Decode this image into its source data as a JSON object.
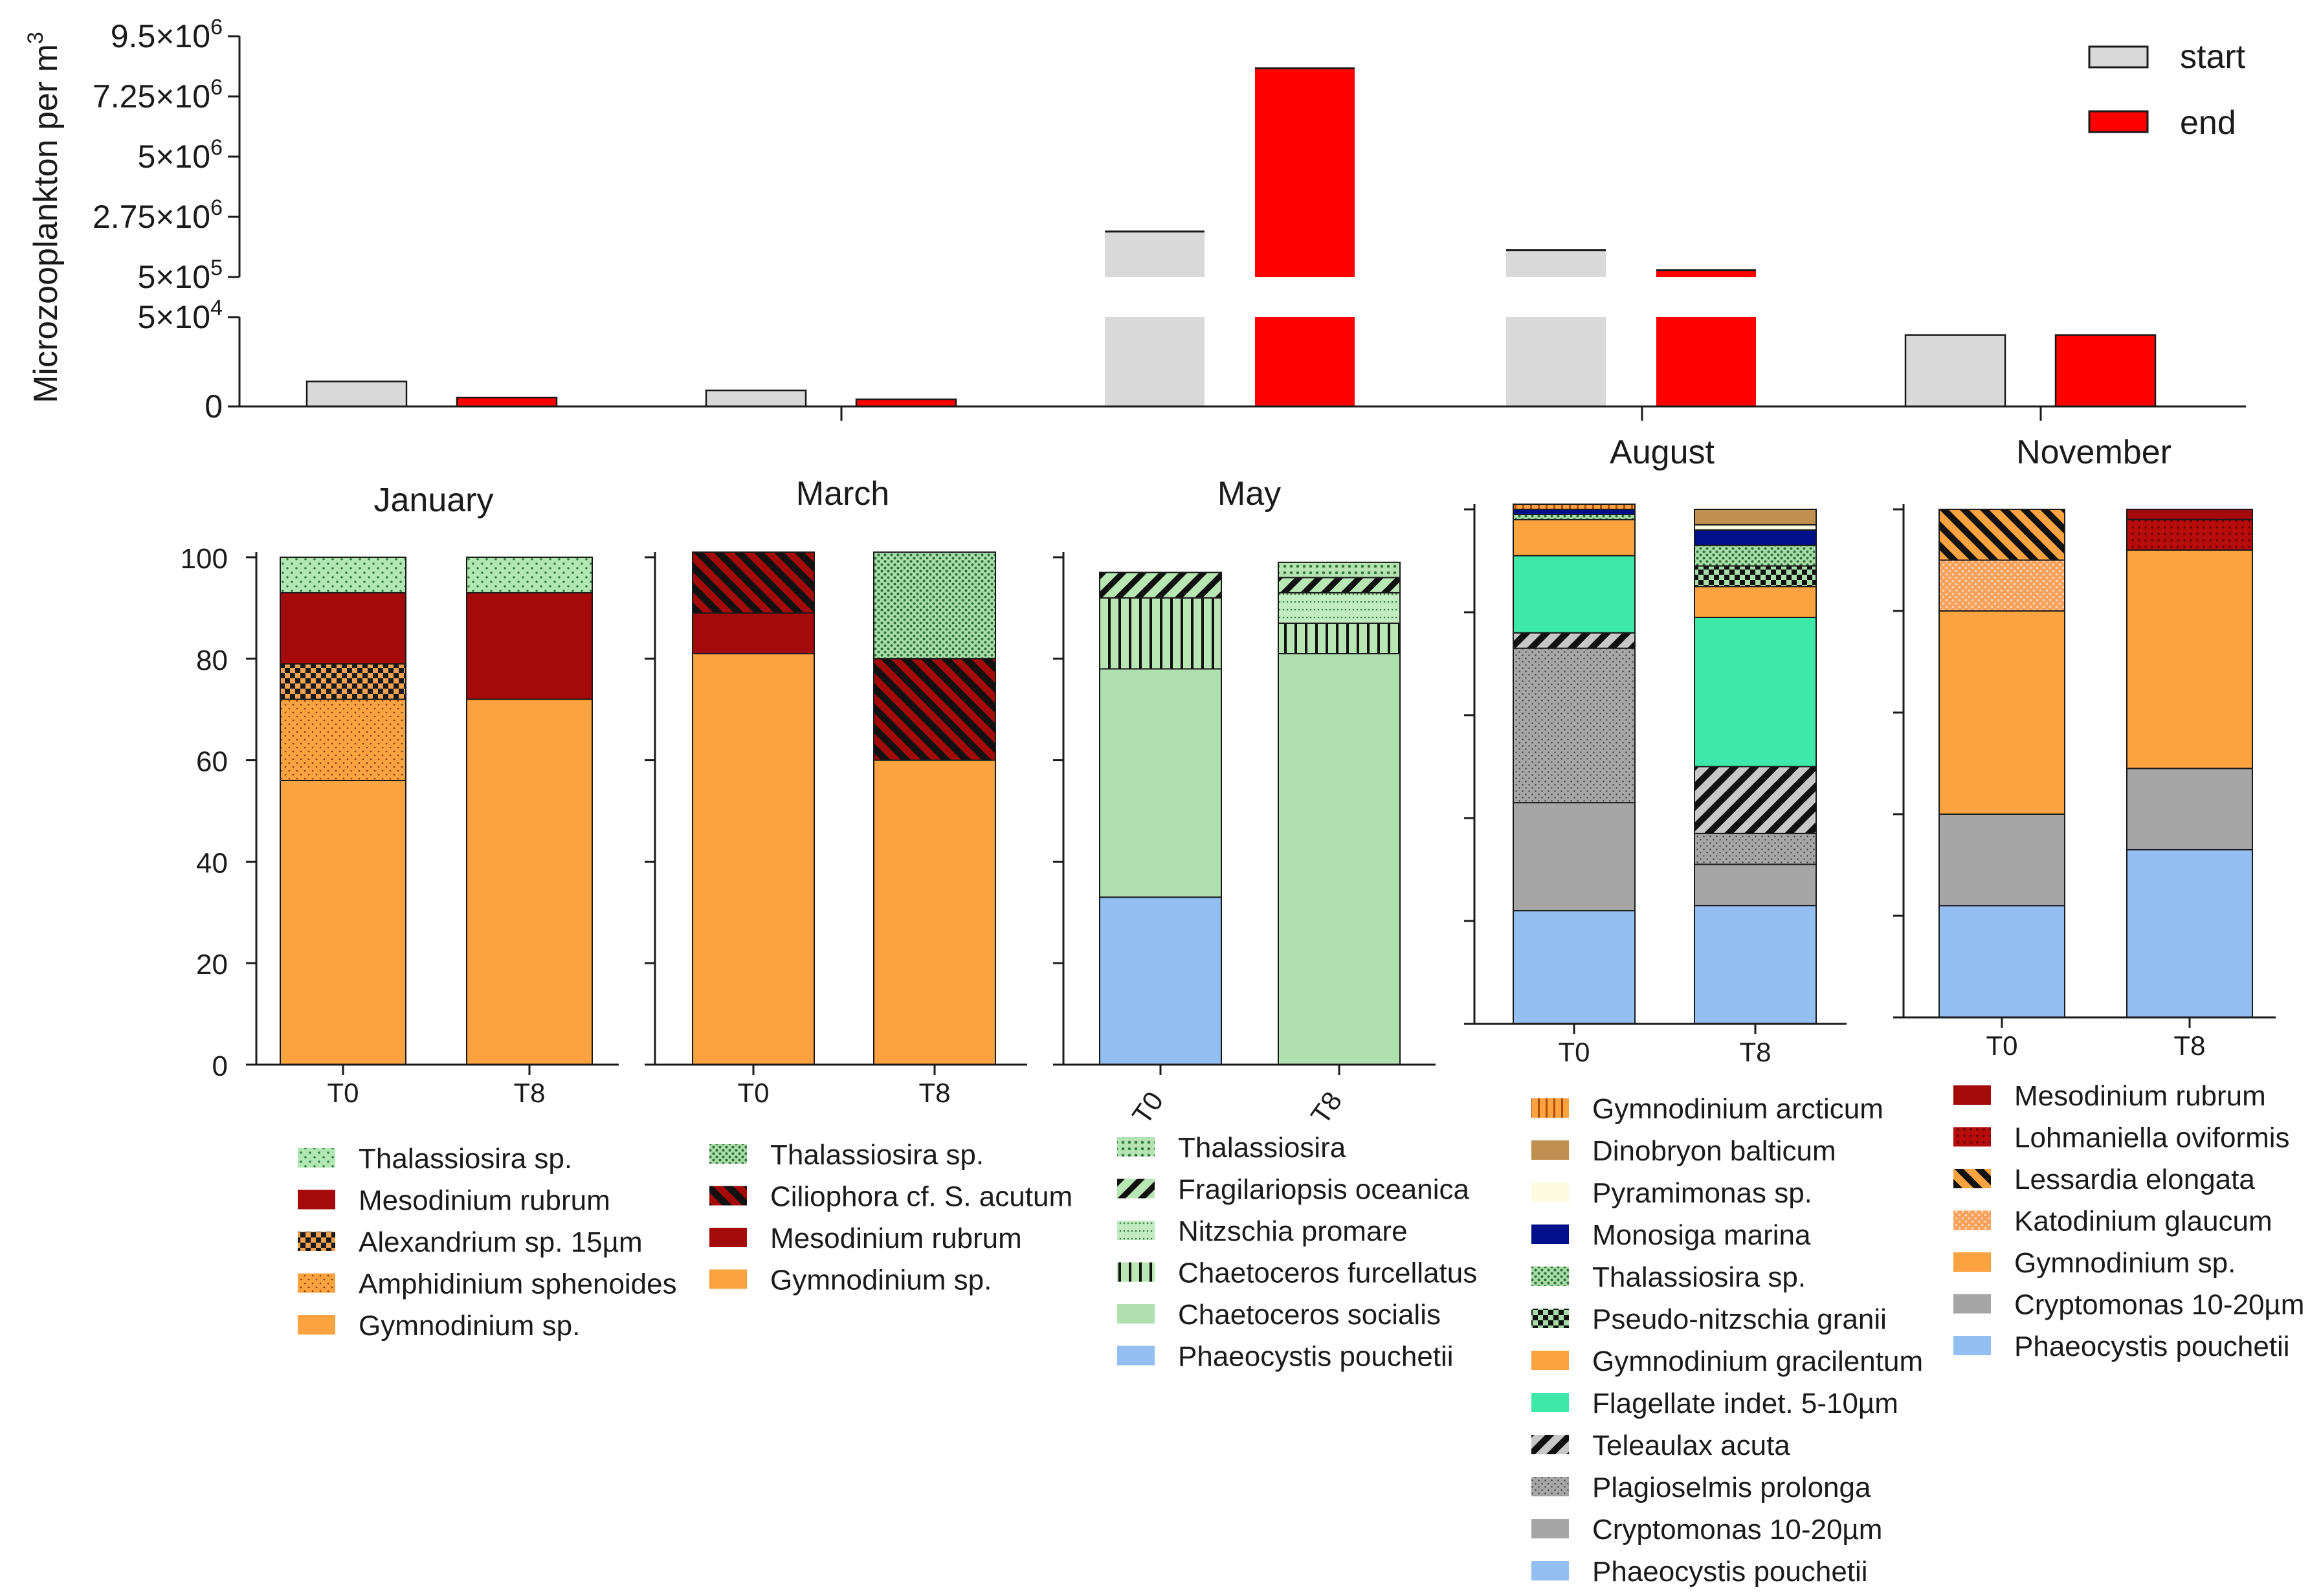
{
  "colors": {
    "start": "#d9d9d9",
    "end": "#ff0000",
    "mesodinium": "#a50a0a",
    "gymnodinium": "#fba341",
    "thalassio": "#b3e6b5",
    "chaet_soc": "#b0dfb0",
    "phaeocystis": "#94bff2",
    "crypto": "#a6a6a6",
    "plagio": "#a6a6a6",
    "flagellate": "#3ee8a9",
    "dino": "#c09050",
    "pyram": "#fffbe0",
    "monosiga": "#00108a",
    "katod": "#f6a15c",
    "white": "#ffffff"
  },
  "chart_data": [
    {
      "type": "bar",
      "title": "",
      "ylabel": "Microzooplankton per m³",
      "ylabel_main": "Microzooplankton per m",
      "ylabel_sup": "3",
      "axis_break": true,
      "lower_ylim": [
        0,
        50000
      ],
      "upper_ylim": [
        500000,
        9500000
      ],
      "lower_ticks": [
        {
          "value": 0,
          "label": "0"
        },
        {
          "value": 50000,
          "label": "5×10",
          "exp": "4"
        }
      ],
      "upper_ticks": [
        {
          "value": 500000,
          "label": "5×10",
          "exp": "5"
        },
        {
          "value": 2750000,
          "label": "2.75×10",
          "exp": "6"
        },
        {
          "value": 5000000,
          "label": "5×10",
          "exp": "6"
        },
        {
          "value": 7250000,
          "label": "7.25×10",
          "exp": "6"
        },
        {
          "value": 9500000,
          "label": "9.5×10",
          "exp": "6"
        }
      ],
      "categories": [
        "January",
        "March",
        "May",
        "August",
        "November"
      ],
      "series": [
        {
          "name": "start",
          "values": [
            14000,
            9000,
            2200000,
            1500000,
            40000
          ]
        },
        {
          "name": "end",
          "values": [
            5000,
            4000,
            8300000,
            750000,
            40000
          ]
        }
      ],
      "legend": [
        "start",
        "end"
      ],
      "legend_position": "top-right"
    },
    {
      "type": "bar",
      "stacked": true,
      "title": "January",
      "categories": [
        "T0",
        "T8"
      ],
      "y_ticks": [
        "0",
        "20",
        "40",
        "60",
        "80",
        "100"
      ],
      "ylim": [
        0,
        100
      ],
      "series": [
        {
          "name": "Gymnodinium sp.",
          "values": [
            56,
            72
          ],
          "pattern": "gymnodinium"
        },
        {
          "name": "Amphidinium sphenoides",
          "values": [
            16,
            0
          ],
          "pattern": "amphid"
        },
        {
          "name": "Alexandrium sp. 15µm",
          "values": [
            7,
            0
          ],
          "pattern": "alex"
        },
        {
          "name": "Mesodinium rubrum",
          "values": [
            14,
            21
          ],
          "pattern": "mesodinium"
        },
        {
          "name": "Thalassiosira sp.",
          "values": [
            7,
            7
          ],
          "pattern": "thalassio"
        }
      ],
      "legend": [
        "Thalassiosira sp.",
        "Mesodinium rubrum",
        "Alexandrium sp. 15µm",
        "Amphidinium sphenoides",
        "Gymnodinium sp."
      ]
    },
    {
      "type": "bar",
      "stacked": true,
      "title": "March",
      "categories": [
        "T0",
        "T8"
      ],
      "ylim": [
        0,
        100
      ],
      "series": [
        {
          "name": "Gymnodinium sp.",
          "values": [
            81,
            60
          ],
          "pattern": "gymnodinium"
        },
        {
          "name": "Mesodinium rubrum",
          "values": [
            8,
            0
          ],
          "pattern": "mesodinium"
        },
        {
          "name": "Ciliophora cf. S. acutum",
          "values": [
            12,
            20
          ],
          "pattern": "cilio"
        },
        {
          "name": "Thalassiosira sp.",
          "values": [
            0,
            21
          ],
          "pattern": "thal2"
        }
      ],
      "legend": [
        "Thalassiosira sp.",
        "Ciliophora cf. S. acutum",
        "Mesodinium rubrum",
        "Gymnodinium sp."
      ]
    },
    {
      "type": "bar",
      "stacked": true,
      "title": "May",
      "categories": [
        "T0",
        "T8"
      ],
      "ylim": [
        0,
        100
      ],
      "series": [
        {
          "name": "Phaeocystis pouchetii",
          "values": [
            33,
            0
          ],
          "pattern": "phaeocystis"
        },
        {
          "name": "Chaetoceros socialis",
          "values": [
            45,
            81
          ],
          "pattern": "chaet_soc"
        },
        {
          "name": "Chaetoceros furcellatus",
          "values": [
            14,
            6
          ],
          "pattern": "chaet_furc"
        },
        {
          "name": "Nitzschia promare",
          "values": [
            0,
            6
          ],
          "pattern": "nitz"
        },
        {
          "name": "Fragilariopsis oceanica",
          "values": [
            5,
            3
          ],
          "pattern": "fragil"
        },
        {
          "name": "Thalassiosira",
          "values": [
            0,
            3
          ],
          "pattern": "thal3"
        }
      ],
      "legend": [
        "Thalassiosira",
        "Fragilariopsis oceanica",
        "Nitzschia promare",
        "Chaetoceros furcellatus",
        "Chaetoceros socialis",
        "Phaeocystis pouchetii"
      ]
    },
    {
      "type": "bar",
      "stacked": true,
      "title": "August",
      "categories": [
        "T0",
        "T8"
      ],
      "ylim": [
        0,
        100
      ],
      "series": [
        {
          "name": "Phaeocystis pouchetii",
          "values": [
            22,
            23
          ],
          "pattern": "phaeocystis"
        },
        {
          "name": "Cryptomonas 10-20µm",
          "values": [
            21,
            8
          ],
          "pattern": "crypto"
        },
        {
          "name": "Plagioselmis prolonga",
          "values": [
            30,
            6
          ],
          "pattern": "plagio"
        },
        {
          "name": "Teleaulax acuta",
          "values": [
            3,
            13
          ],
          "pattern": "teleaulax"
        },
        {
          "name": "Flagellate indet. 5-10µm",
          "values": [
            15,
            29
          ],
          "pattern": "flagellate"
        },
        {
          "name": "Gymnodinium gracilentum",
          "values": [
            7,
            6
          ],
          "pattern": "gymnodinium"
        },
        {
          "name": "Pseudo-nitzschia granii",
          "values": [
            0,
            4
          ],
          "pattern": "pseudo"
        },
        {
          "name": "Thalassiosira sp.",
          "values": [
            1,
            4
          ],
          "pattern": "thal2"
        },
        {
          "name": "Monosiga marina",
          "values": [
            1,
            3
          ],
          "pattern": "monosiga"
        },
        {
          "name": "Pyramimonas sp.",
          "values": [
            0,
            1
          ],
          "pattern": "pyram"
        },
        {
          "name": "Dinobryon balticum",
          "values": [
            0,
            3
          ],
          "pattern": "dino"
        },
        {
          "name": "Gymnodinium arcticum",
          "values": [
            1,
            0
          ],
          "pattern": "garct"
        }
      ],
      "legend": [
        "Gymnodinium arcticum",
        "Dinobryon balticum",
        "Pyramimonas sp.",
        "Monosiga marina",
        "Thalassiosira sp.",
        "Pseudo-nitzschia granii",
        "Gymnodinium gracilentum",
        "Flagellate indet. 5-10µm",
        "Teleaulax acuta",
        "Plagioselmis prolonga",
        "Cryptomonas 10-20µm",
        "Phaeocystis pouchetii"
      ]
    },
    {
      "type": "bar",
      "stacked": true,
      "title": "November",
      "categories": [
        "T0",
        "T8"
      ],
      "ylim": [
        0,
        100
      ],
      "series": [
        {
          "name": "Phaeocystis pouchetii",
          "values": [
            22,
            33
          ],
          "pattern": "phaeocystis"
        },
        {
          "name": "Cryptomonas 10-20µm",
          "values": [
            18,
            16
          ],
          "pattern": "crypto"
        },
        {
          "name": "Gymnodinium sp.",
          "values": [
            40,
            43
          ],
          "pattern": "gymnodinium"
        },
        {
          "name": "Katodinium glaucum",
          "values": [
            10,
            0
          ],
          "pattern": "katod"
        },
        {
          "name": "Lessardia elongata",
          "values": [
            10,
            0
          ],
          "pattern": "lessardia"
        },
        {
          "name": "Lohmaniella oviformis",
          "values": [
            0,
            6
          ],
          "pattern": "lohman"
        },
        {
          "name": "Mesodinium rubrum",
          "values": [
            0,
            2
          ],
          "pattern": "mesodinium"
        }
      ],
      "legend": [
        "Mesodinium rubrum",
        "Lohmaniella oviformis",
        "Lessardia elongata",
        "Katodinium glaucum",
        "Gymnodinium sp.",
        "Cryptomonas 10-20µm",
        "Phaeocystis pouchetii"
      ]
    }
  ]
}
